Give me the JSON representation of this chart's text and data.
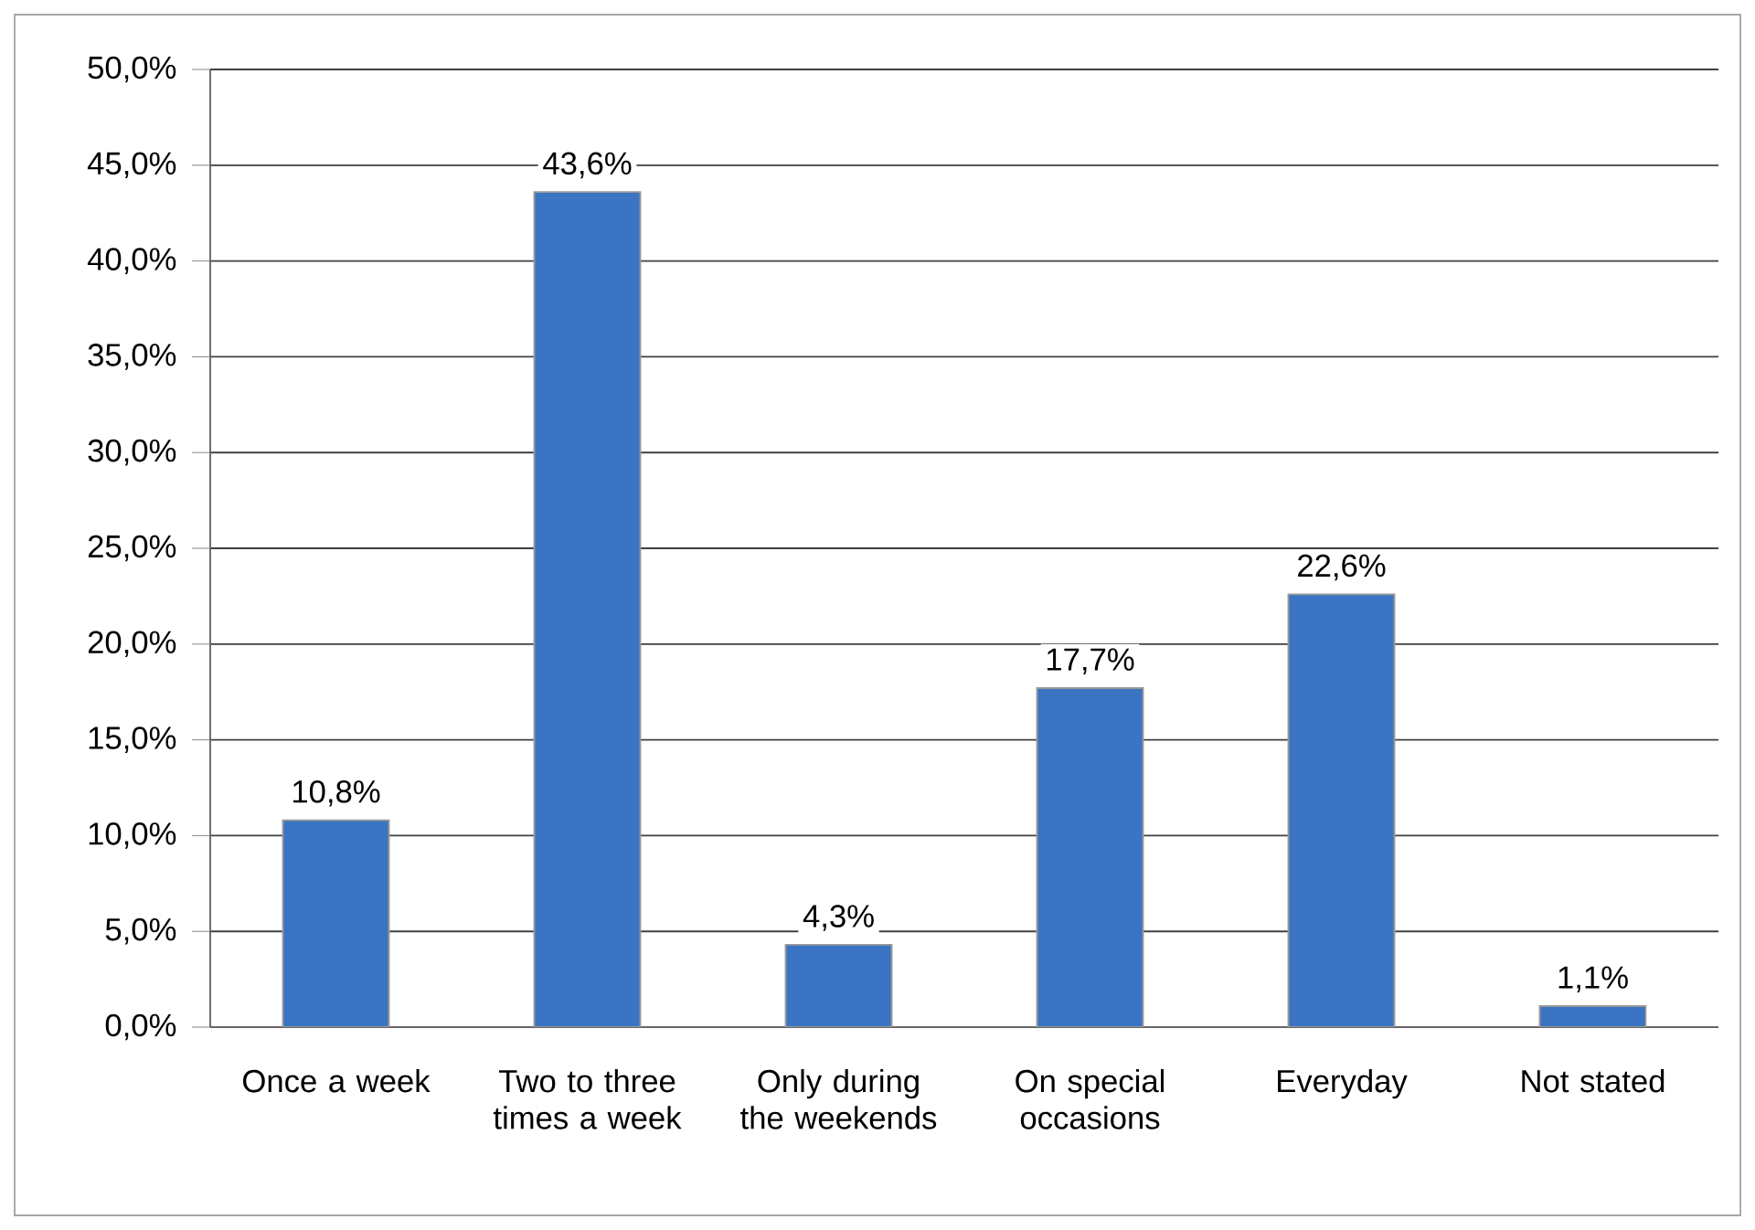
{
  "chart_data": {
    "type": "bar",
    "categories": [
      "Once a week",
      "Two to three times a week",
      "Only during the weekends",
      "On special occasions",
      "Everyday",
      "Not stated"
    ],
    "values": [
      10.8,
      43.6,
      4.3,
      17.7,
      22.6,
      1.1
    ],
    "value_labels": [
      "10,8%",
      "43,6%",
      "4,3%",
      "17,7%",
      "22,6%",
      "1,1%"
    ],
    "color": "#3a74c2",
    "ylim": [
      0,
      50
    ],
    "yticks": [
      {
        "value": 0,
        "label": "0,0%"
      },
      {
        "value": 5,
        "label": "5,0%"
      },
      {
        "value": 10,
        "label": "10,0%"
      },
      {
        "value": 15,
        "label": "15,0%"
      },
      {
        "value": 20,
        "label": "20,0%"
      },
      {
        "value": 25,
        "label": "25,0%"
      },
      {
        "value": 30,
        "label": "30,0%"
      },
      {
        "value": 35,
        "label": "35,0%"
      },
      {
        "value": 40,
        "label": "40,0%"
      },
      {
        "value": 45,
        "label": "45,0%"
      },
      {
        "value": 50,
        "label": "50,0%"
      }
    ],
    "grid": "y"
  }
}
